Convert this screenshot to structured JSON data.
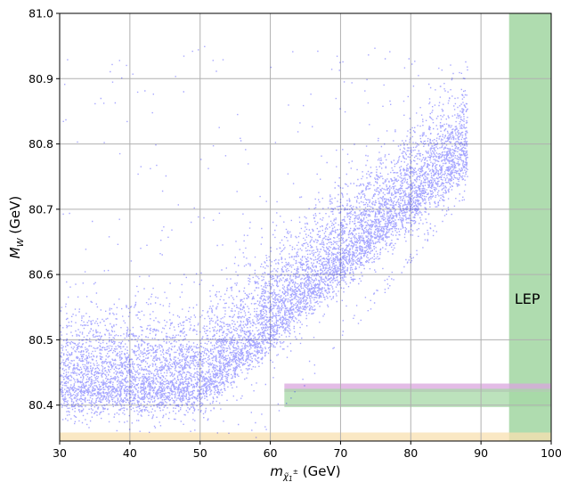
{
  "chart_data": {
    "type": "scatter",
    "title": "",
    "xlabel": "m",
    "xlabel_sub": "χ̃",
    "xlabel_subsub": "1",
    "xlabel_sup": "±",
    "xlabel_unit": "(GeV)",
    "ylabel": "M",
    "ylabel_sub": "W",
    "ylabel_unit": "(GeV)",
    "xlim": [
      30,
      100
    ],
    "ylim": [
      80.345,
      81.0
    ],
    "xticks": [
      "30",
      "40",
      "50",
      "60",
      "70",
      "80",
      "90",
      "100"
    ],
    "yticks": [
      "80.4",
      "80.5",
      "80.6",
      "80.7",
      "80.8",
      "80.9",
      "81.0"
    ],
    "grid": true,
    "point_color": "#0000ff",
    "point_count_approx": 30000,
    "bands": [
      {
        "orientation": "vertical",
        "x_range": [
          94,
          100
        ],
        "color": "#a6d8a6",
        "label": "LEP"
      },
      {
        "orientation": "horizontal",
        "y_range": [
          80.42,
          80.433
        ],
        "x_start": 62,
        "color": "#d9a6dd"
      },
      {
        "orientation": "horizontal",
        "y_range": [
          80.397,
          80.425
        ],
        "x_start": 62,
        "color": "#a6d8a6"
      },
      {
        "orientation": "horizontal",
        "y_range": [
          80.345,
          80.358
        ],
        "x_start": 30,
        "color": "#f8e0b0"
      }
    ],
    "annotations": [
      {
        "text": "LEP",
        "x": 96.6,
        "y": 80.555
      }
    ]
  }
}
